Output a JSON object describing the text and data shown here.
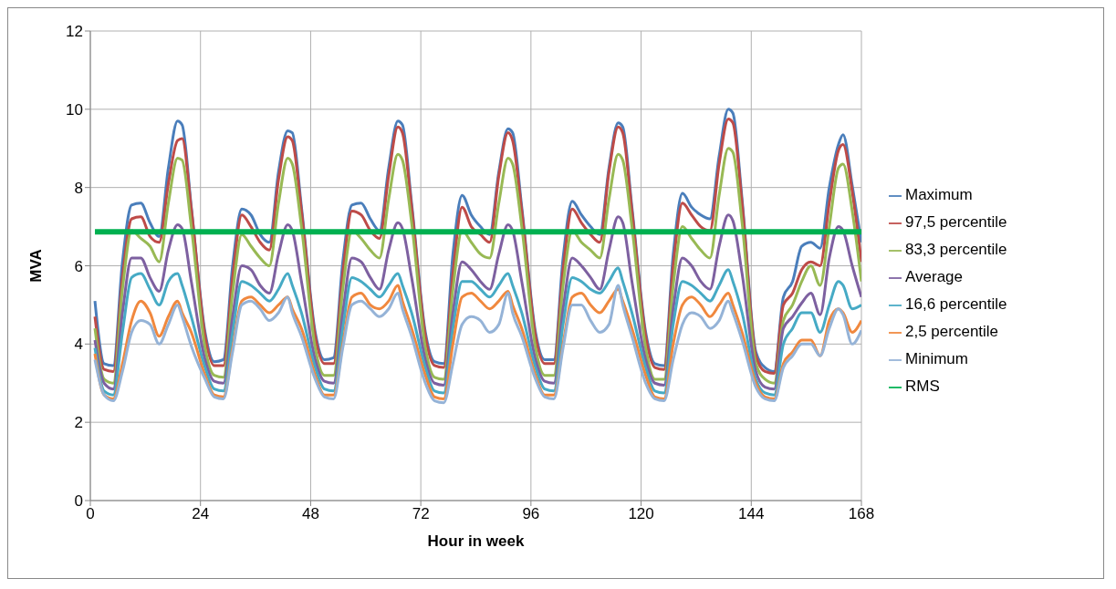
{
  "chart_data": {
    "type": "line",
    "xlabel": "Hour in week",
    "ylabel": "MVA",
    "x": [
      1,
      3,
      5,
      7,
      9,
      11,
      13,
      15,
      17,
      19,
      20,
      22,
      25,
      27,
      29,
      31,
      33,
      35,
      37,
      39,
      41,
      43,
      44,
      46,
      49,
      51,
      53,
      55,
      57,
      59,
      61,
      63,
      65,
      67,
      68,
      70,
      73,
      75,
      77,
      79,
      81,
      83,
      85,
      87,
      89,
      91,
      92,
      94,
      97,
      99,
      101,
      103,
      105,
      107,
      109,
      111,
      113,
      115,
      116,
      118,
      121,
      123,
      125,
      127,
      129,
      131,
      133,
      135,
      137,
      139,
      140,
      142,
      145,
      147,
      149,
      151,
      153,
      155,
      157,
      159,
      161,
      163,
      164,
      166,
      168
    ],
    "series": [
      {
        "name": "Maximum",
        "color": "#4a7ebb",
        "values": [
          5.1,
          3.5,
          3.45,
          6.1,
          7.55,
          7.6,
          7.1,
          6.75,
          8.5,
          9.7,
          9.6,
          7.5,
          4.3,
          3.55,
          3.6,
          6.0,
          7.45,
          7.3,
          6.8,
          6.6,
          8.4,
          9.45,
          9.4,
          7.5,
          4.3,
          3.6,
          3.65,
          6.1,
          7.55,
          7.6,
          7.2,
          6.9,
          8.5,
          9.7,
          9.6,
          7.6,
          4.3,
          3.55,
          3.5,
          6.3,
          7.8,
          7.3,
          7.0,
          6.8,
          8.4,
          9.5,
          9.4,
          7.5,
          4.3,
          3.6,
          3.6,
          6.2,
          7.65,
          7.3,
          7.0,
          6.8,
          8.5,
          9.65,
          9.55,
          7.5,
          4.3,
          3.5,
          3.45,
          6.3,
          7.85,
          7.5,
          7.3,
          7.2,
          8.8,
          10.0,
          9.9,
          7.7,
          3.8,
          3.4,
          3.3,
          5.2,
          5.6,
          6.5,
          6.6,
          6.45,
          8.0,
          9.1,
          9.35,
          8.05,
          6.6
        ]
      },
      {
        "name": "97,5 percentile",
        "color": "#be4b48",
        "values": [
          4.7,
          3.35,
          3.3,
          5.7,
          7.2,
          7.25,
          6.75,
          6.6,
          8.1,
          9.2,
          9.25,
          7.45,
          4.2,
          3.45,
          3.45,
          5.7,
          7.3,
          7.0,
          6.6,
          6.4,
          8.2,
          9.3,
          9.2,
          7.4,
          4.2,
          3.5,
          3.5,
          5.8,
          7.4,
          7.3,
          6.9,
          6.7,
          8.3,
          9.55,
          9.4,
          7.5,
          4.2,
          3.45,
          3.4,
          5.8,
          7.5,
          7.0,
          6.8,
          6.6,
          8.3,
          9.4,
          9.2,
          7.4,
          4.2,
          3.5,
          3.5,
          5.9,
          7.45,
          7.1,
          6.8,
          6.6,
          8.4,
          9.55,
          9.4,
          7.4,
          4.2,
          3.4,
          3.35,
          6.0,
          7.6,
          7.3,
          7.0,
          6.9,
          8.6,
          9.75,
          9.65,
          7.6,
          3.7,
          3.3,
          3.25,
          5.0,
          5.3,
          5.9,
          6.1,
          6.0,
          7.6,
          8.95,
          9.1,
          7.9,
          6.1
        ]
      },
      {
        "name": "83,3 percentile",
        "color": "#98b954",
        "values": [
          4.4,
          3.1,
          3.0,
          5.4,
          6.9,
          6.7,
          6.5,
          6.1,
          7.6,
          8.75,
          8.7,
          7.0,
          3.9,
          3.2,
          3.15,
          5.3,
          6.8,
          6.5,
          6.2,
          6.0,
          7.6,
          8.75,
          8.6,
          7.0,
          3.9,
          3.2,
          3.2,
          5.4,
          6.9,
          6.7,
          6.4,
          6.2,
          7.7,
          8.85,
          8.7,
          7.1,
          3.9,
          3.15,
          3.1,
          5.4,
          6.9,
          6.6,
          6.3,
          6.2,
          7.6,
          8.75,
          8.6,
          7.0,
          3.9,
          3.2,
          3.2,
          5.5,
          6.9,
          6.6,
          6.4,
          6.2,
          7.7,
          8.85,
          8.7,
          7.0,
          3.9,
          3.1,
          3.1,
          5.5,
          7.0,
          6.7,
          6.4,
          6.2,
          7.8,
          9.0,
          8.9,
          7.1,
          3.5,
          3.1,
          3.0,
          4.6,
          5.0,
          5.6,
          6.0,
          5.5,
          7.0,
          8.5,
          8.6,
          7.4,
          5.6
        ]
      },
      {
        "name": "Average",
        "color": "#7d60a0",
        "values": [
          4.1,
          3.0,
          2.85,
          4.8,
          6.2,
          6.2,
          5.7,
          5.35,
          6.4,
          7.05,
          6.95,
          5.6,
          3.6,
          3.05,
          3.0,
          4.7,
          6.0,
          5.9,
          5.5,
          5.3,
          6.3,
          7.05,
          6.9,
          5.6,
          3.6,
          3.05,
          3.0,
          4.8,
          6.2,
          6.1,
          5.7,
          5.4,
          6.4,
          7.1,
          6.95,
          5.7,
          3.6,
          3.0,
          2.95,
          4.8,
          6.1,
          5.9,
          5.6,
          5.4,
          6.3,
          7.05,
          6.9,
          5.6,
          3.6,
          3.05,
          3.0,
          4.9,
          6.2,
          6.0,
          5.7,
          5.4,
          6.4,
          7.25,
          7.1,
          5.6,
          3.6,
          3.0,
          2.95,
          4.9,
          6.2,
          6.0,
          5.6,
          5.4,
          6.5,
          7.3,
          7.15,
          5.8,
          3.3,
          2.9,
          2.85,
          4.4,
          4.7,
          5.05,
          5.3,
          4.75,
          6.2,
          7.0,
          6.9,
          6.0,
          5.2
        ]
      },
      {
        "name": "16,6 percentile",
        "color": "#46aac5",
        "values": [
          3.9,
          2.8,
          2.7,
          4.3,
          5.7,
          5.8,
          5.4,
          5.0,
          5.6,
          5.8,
          5.5,
          4.7,
          3.4,
          2.85,
          2.8,
          4.3,
          5.6,
          5.5,
          5.3,
          5.1,
          5.4,
          5.8,
          5.5,
          4.8,
          3.4,
          2.85,
          2.8,
          4.4,
          5.7,
          5.6,
          5.4,
          5.2,
          5.5,
          5.8,
          5.5,
          4.8,
          3.4,
          2.8,
          2.75,
          4.4,
          5.6,
          5.6,
          5.4,
          5.2,
          5.5,
          5.8,
          5.5,
          4.8,
          3.4,
          2.85,
          2.8,
          4.5,
          5.7,
          5.6,
          5.4,
          5.3,
          5.6,
          5.95,
          5.6,
          4.8,
          3.4,
          2.8,
          2.75,
          4.5,
          5.6,
          5.5,
          5.3,
          5.1,
          5.5,
          5.9,
          5.6,
          4.8,
          3.1,
          2.75,
          2.7,
          4.0,
          4.4,
          4.8,
          4.8,
          4.3,
          5.0,
          5.6,
          5.5,
          4.9,
          5.0
        ]
      },
      {
        "name": "2,5 percentile",
        "color": "#f0883e",
        "values": [
          3.75,
          2.7,
          2.6,
          3.5,
          4.6,
          5.1,
          4.8,
          4.2,
          4.7,
          5.1,
          4.8,
          4.3,
          3.2,
          2.7,
          2.65,
          3.9,
          5.1,
          5.2,
          5.0,
          4.8,
          5.0,
          5.2,
          4.9,
          4.4,
          3.2,
          2.7,
          2.7,
          4.0,
          5.2,
          5.3,
          5.0,
          4.9,
          5.1,
          5.5,
          5.1,
          4.4,
          3.2,
          2.65,
          2.6,
          4.0,
          5.2,
          5.3,
          5.1,
          4.9,
          5.1,
          5.35,
          5.0,
          4.4,
          3.2,
          2.7,
          2.7,
          4.0,
          5.2,
          5.3,
          5.0,
          4.8,
          5.1,
          5.4,
          5.1,
          4.4,
          3.2,
          2.65,
          2.6,
          4.0,
          5.0,
          5.2,
          5.0,
          4.7,
          5.0,
          5.3,
          5.0,
          4.3,
          3.0,
          2.65,
          2.6,
          3.5,
          3.8,
          4.1,
          4.1,
          3.7,
          4.6,
          4.9,
          4.8,
          4.3,
          4.6
        ]
      },
      {
        "name": "Minimum",
        "color": "#95b3d7",
        "values": [
          3.6,
          2.7,
          2.55,
          3.3,
          4.3,
          4.6,
          4.5,
          4.0,
          4.5,
          5.0,
          4.7,
          3.95,
          3.1,
          2.65,
          2.6,
          3.8,
          5.0,
          5.1,
          4.9,
          4.6,
          4.8,
          5.2,
          4.8,
          4.2,
          3.1,
          2.65,
          2.6,
          3.9,
          5.0,
          5.1,
          4.9,
          4.7,
          4.9,
          5.3,
          4.9,
          4.2,
          3.0,
          2.55,
          2.5,
          3.5,
          4.5,
          4.7,
          4.6,
          4.3,
          4.5,
          5.3,
          4.8,
          4.2,
          3.1,
          2.65,
          2.6,
          3.9,
          5.0,
          5.0,
          4.6,
          4.3,
          4.5,
          5.5,
          5.0,
          4.2,
          3.0,
          2.6,
          2.55,
          3.6,
          4.5,
          4.8,
          4.7,
          4.4,
          4.6,
          5.1,
          4.8,
          4.1,
          2.9,
          2.6,
          2.55,
          3.4,
          3.7,
          4.0,
          4.0,
          3.7,
          4.4,
          4.9,
          4.75,
          4.0,
          4.35
        ]
      },
      {
        "name": "RMS",
        "color": "#00b050",
        "x": [
          1,
          168
        ],
        "values": [
          6.87,
          6.87
        ]
      }
    ],
    "xlim": [
      0,
      168
    ],
    "xticks": [
      0,
      24,
      48,
      72,
      96,
      120,
      144,
      168
    ],
    "ylim": [
      0,
      12
    ],
    "yticks": [
      0,
      2,
      4,
      6,
      8,
      10,
      12
    ],
    "grid": true,
    "legend": "right"
  }
}
